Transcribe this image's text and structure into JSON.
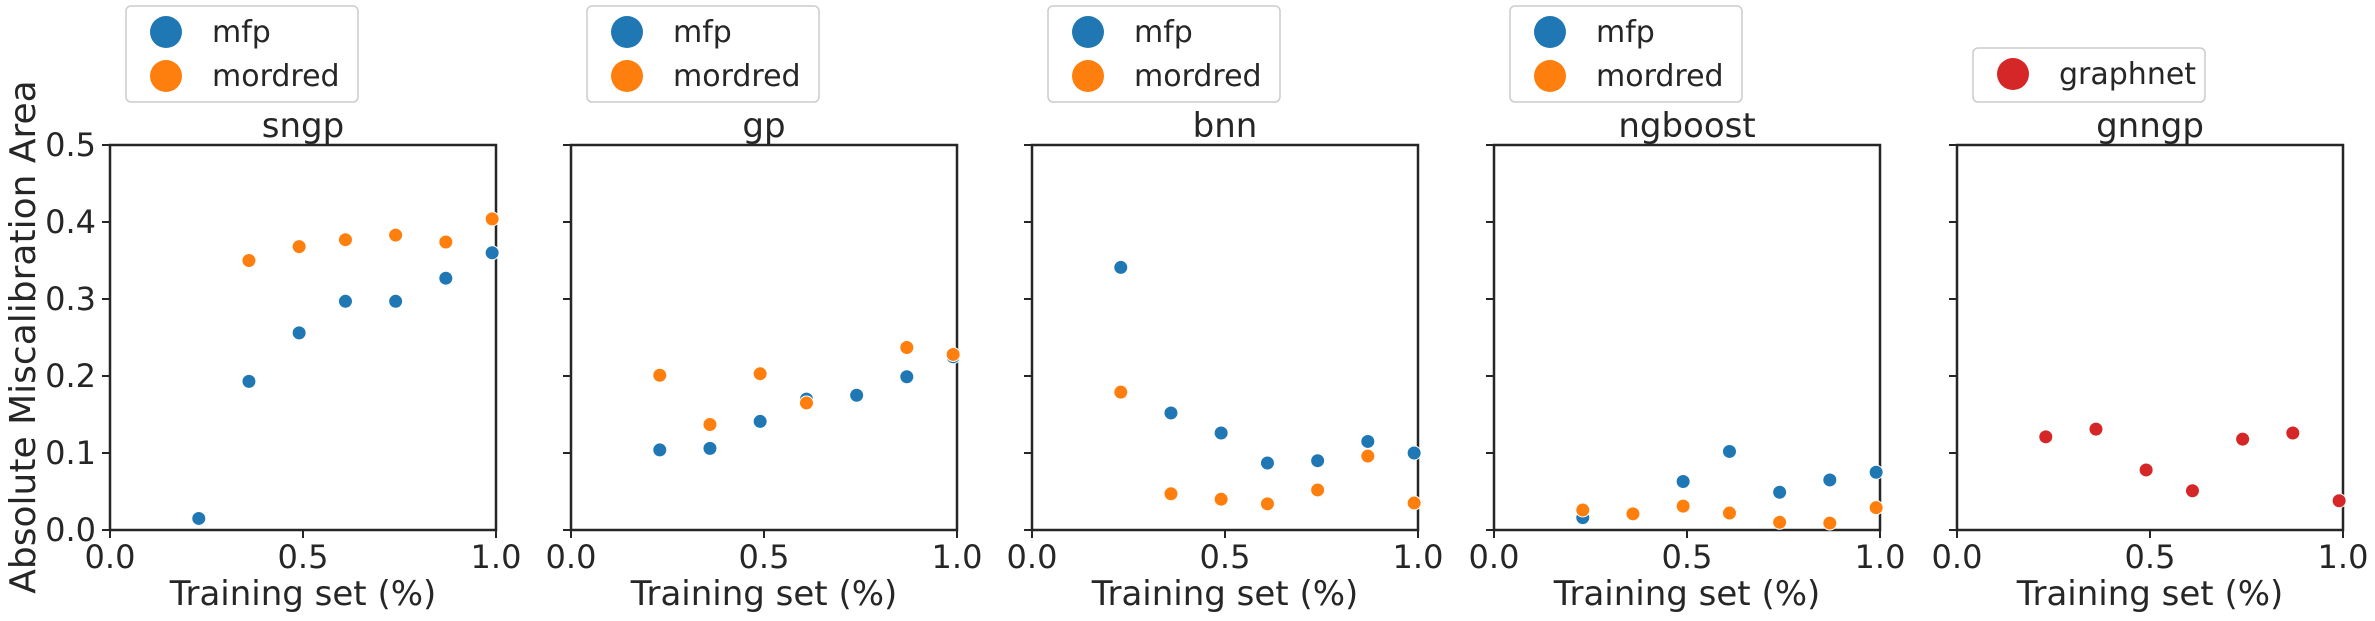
{
  "figure": {
    "ylabel": "Absolute Miscalibration Area"
  },
  "colors": {
    "mfp": "#1f77b4",
    "mordred": "#ff7f0e",
    "graphnet": "#d62728",
    "axis": "#262626",
    "legend_border": "#cccccc"
  },
  "chart_data": [
    {
      "type": "scatter",
      "title": "sngp",
      "xlabel": "Training set (%)",
      "xlim": [
        0.0,
        1.0
      ],
      "ylim": [
        0.0,
        0.5
      ],
      "xticks": [
        "0.0",
        "0.5",
        "1.0"
      ],
      "yticks": [
        "0.0",
        "0.1",
        "0.2",
        "0.3",
        "0.4",
        "0.5"
      ],
      "show_ytick_labels": true,
      "legend": [
        "mfp",
        "mordred"
      ],
      "series": [
        {
          "name": "mfp",
          "color_key": "mfp",
          "x": [
            0.23,
            0.36,
            0.49,
            0.61,
            0.74,
            0.87,
            0.99
          ],
          "y": [
            0.015,
            0.193,
            0.256,
            0.297,
            0.297,
            0.327,
            0.36
          ]
        },
        {
          "name": "mordred",
          "color_key": "mordred",
          "x": [
            0.36,
            0.49,
            0.61,
            0.74,
            0.87,
            0.99
          ],
          "y": [
            0.35,
            0.368,
            0.377,
            0.383,
            0.374,
            0.404
          ]
        }
      ]
    },
    {
      "type": "scatter",
      "title": "gp",
      "xlabel": "Training set (%)",
      "xlim": [
        0.0,
        1.0
      ],
      "ylim": [
        0.0,
        0.5
      ],
      "xticks": [
        "0.0",
        "0.5",
        "1.0"
      ],
      "yticks": [
        "0.0",
        "0.1",
        "0.2",
        "0.3",
        "0.4",
        "0.5"
      ],
      "show_ytick_labels": false,
      "legend": [
        "mfp",
        "mordred"
      ],
      "series": [
        {
          "name": "mfp",
          "color_key": "mfp",
          "x": [
            0.23,
            0.36,
            0.49,
            0.61,
            0.74,
            0.87,
            0.99
          ],
          "y": [
            0.104,
            0.106,
            0.141,
            0.17,
            0.175,
            0.199,
            0.225
          ]
        },
        {
          "name": "mordred",
          "color_key": "mordred",
          "x": [
            0.23,
            0.36,
            0.49,
            0.61,
            0.87,
            0.99
          ],
          "y": [
            0.201,
            0.137,
            0.203,
            0.165,
            0.237,
            0.228
          ]
        }
      ]
    },
    {
      "type": "scatter",
      "title": "bnn",
      "xlabel": "Training set (%)",
      "xlim": [
        0.0,
        1.0
      ],
      "ylim": [
        0.0,
        0.5
      ],
      "xticks": [
        "0.0",
        "0.5",
        "1.0"
      ],
      "yticks": [
        "0.0",
        "0.1",
        "0.2",
        "0.3",
        "0.4",
        "0.5"
      ],
      "show_ytick_labels": false,
      "legend": [
        "mfp",
        "mordred"
      ],
      "series": [
        {
          "name": "mfp",
          "color_key": "mfp",
          "x": [
            0.23,
            0.36,
            0.49,
            0.61,
            0.74,
            0.87,
            0.99
          ],
          "y": [
            0.341,
            0.152,
            0.126,
            0.087,
            0.09,
            0.115,
            0.1
          ]
        },
        {
          "name": "mordred",
          "color_key": "mordred",
          "x": [
            0.23,
            0.36,
            0.49,
            0.61,
            0.74,
            0.87,
            0.99
          ],
          "y": [
            0.179,
            0.047,
            0.04,
            0.034,
            0.052,
            0.096,
            0.035
          ]
        }
      ]
    },
    {
      "type": "scatter",
      "title": "ngboost",
      "xlabel": "Training set (%)",
      "xlim": [
        0.0,
        1.0
      ],
      "ylim": [
        0.0,
        0.5
      ],
      "xticks": [
        "0.0",
        "0.5",
        "1.0"
      ],
      "yticks": [
        "0.0",
        "0.1",
        "0.2",
        "0.3",
        "0.4",
        "0.5"
      ],
      "show_ytick_labels": false,
      "legend": [
        "mfp",
        "mordred"
      ],
      "series": [
        {
          "name": "mfp",
          "color_key": "mfp",
          "x": [
            0.23,
            0.49,
            0.61,
            0.74,
            0.87,
            0.99
          ],
          "y": [
            0.016,
            0.063,
            0.102,
            0.049,
            0.065,
            0.075
          ]
        },
        {
          "name": "mordred",
          "color_key": "mordred",
          "x": [
            0.23,
            0.36,
            0.49,
            0.61,
            0.74,
            0.87,
            0.99
          ],
          "y": [
            0.026,
            0.021,
            0.031,
            0.022,
            0.01,
            0.009,
            0.029
          ]
        }
      ]
    },
    {
      "type": "scatter",
      "title": "gnngp",
      "xlabel": "Training set (%)",
      "xlim": [
        0.0,
        1.0
      ],
      "ylim": [
        0.0,
        0.5
      ],
      "xticks": [
        "0.0",
        "0.5",
        "1.0"
      ],
      "yticks": [
        "0.0",
        "0.1",
        "0.2",
        "0.3",
        "0.4",
        "0.5"
      ],
      "show_ytick_labels": false,
      "legend": [
        "graphnet"
      ],
      "series": [
        {
          "name": "graphnet",
          "color_key": "graphnet",
          "x": [
            0.23,
            0.36,
            0.49,
            0.61,
            0.74,
            0.87,
            0.99
          ],
          "y": [
            0.121,
            0.131,
            0.078,
            0.051,
            0.118,
            0.126,
            0.038
          ]
        }
      ]
    }
  ]
}
